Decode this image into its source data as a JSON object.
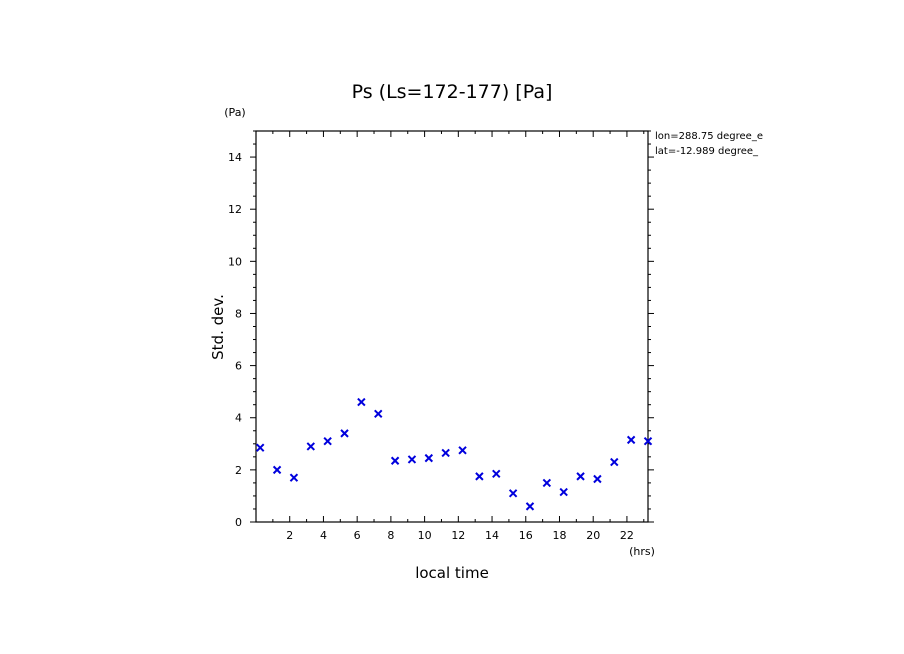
{
  "chart_data": {
    "type": "scatter",
    "title": "Ps (Ls=172-177) [Pa]",
    "xlabel": "local time",
    "ylabel": "Std. dev.",
    "x_unit": "(hrs)",
    "y_unit": "(Pa)",
    "annotations": [
      "lon=288.75 degree_e",
      "lat=-12.989 degree_"
    ],
    "xlim": [
      0,
      23.25
    ],
    "ylim": [
      0,
      15
    ],
    "x_ticks": [
      2,
      4,
      6,
      8,
      10,
      12,
      14,
      16,
      18,
      20,
      22
    ],
    "y_ticks": [
      0,
      2,
      4,
      6,
      8,
      10,
      12,
      14
    ],
    "marker": "x",
    "marker_color": "#0000dd",
    "grid": false,
    "series": [
      {
        "x": [
          0.25,
          1.25,
          2.25,
          3.25,
          4.25,
          5.25,
          6.25,
          7.25,
          8.25,
          9.25,
          10.25,
          11.25,
          12.25,
          13.25,
          14.25,
          15.25,
          16.25,
          17.25,
          18.25,
          19.25,
          20.25,
          21.25,
          22.25,
          23.25
        ],
        "values": [
          2.85,
          2.0,
          1.7,
          2.9,
          3.1,
          3.4,
          4.6,
          4.15,
          2.35,
          2.4,
          2.45,
          2.65,
          2.75,
          1.75,
          1.85,
          1.1,
          0.6,
          1.5,
          1.15,
          1.75,
          1.65,
          2.3,
          3.15,
          3.1
        ]
      }
    ]
  }
}
